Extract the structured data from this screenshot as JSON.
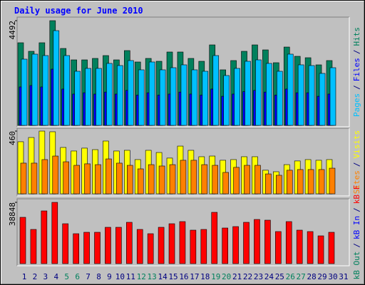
{
  "chart_data": [
    {
      "type": "bar",
      "title": "Daily usage for June 2010",
      "legend_separator": "/",
      "ylim": [
        0,
        4492
      ],
      "yticks": [
        4492
      ],
      "series": [
        {
          "name": "Hits",
          "color": "#00805c",
          "values": [
            3545,
            3178,
            3545,
            4492,
            3300,
            2811,
            2811,
            2873,
            2995,
            2811,
            3209,
            2720,
            2873,
            2750,
            3148,
            3148,
            2873,
            2750,
            3453,
            2384,
            2781,
            3178,
            3453,
            3239,
            2689,
            3361,
            2964,
            2903,
            2597,
            2781,
            null
          ]
        },
        {
          "name": "Files",
          "color": "#0000ff",
          "values": [
            1650,
            1711,
            1650,
            2414,
            1559,
            1345,
            1400,
            1345,
            1430,
            1345,
            1500,
            1300,
            1400,
            1300,
            1345,
            1430,
            1345,
            1300,
            1560,
            1250,
            1345,
            1450,
            1500,
            1430,
            1300,
            1560,
            1400,
            1400,
            1250,
            1345,
            null
          ]
        },
        {
          "name": "Pages",
          "color": "#00c0ff",
          "values": [
            2842,
            3056,
            2995,
            4064,
            2995,
            2322,
            2445,
            2445,
            2659,
            2567,
            2781,
            2384,
            2720,
            2384,
            2475,
            2598,
            2384,
            2322,
            2995,
            2139,
            2445,
            2750,
            2811,
            2659,
            2322,
            3056,
            2598,
            2567,
            2231,
            2475,
            null
          ]
        }
      ]
    },
    {
      "type": "bar",
      "legend_separator": "/",
      "ylim": [
        0,
        460
      ],
      "yticks": [
        460
      ],
      "series": [
        {
          "name": "Visits",
          "color": "#ffff00",
          "values": [
            382,
            413,
            460,
            455,
            340,
            314,
            335,
            324,
            387,
            314,
            319,
            251,
            319,
            303,
            262,
            350,
            319,
            272,
            277,
            246,
            251,
            272,
            272,
            173,
            162,
            214,
            241,
            251,
            246,
            251,
            null
          ]
        },
        {
          "name": "Sites",
          "color": "#ff8000",
          "values": [
            225,
            225,
            251,
            277,
            235,
            209,
            220,
            214,
            256,
            225,
            209,
            183,
            214,
            204,
            214,
            246,
            246,
            214,
            209,
            157,
            194,
            209,
            209,
            146,
            136,
            173,
            178,
            178,
            178,
            188,
            null
          ]
        }
      ]
    },
    {
      "type": "bar",
      "legend_separator": "/",
      "ylim": [
        0,
        38848
      ],
      "yticks": [
        38848
      ],
      "categories": [
        "1",
        "2",
        "3",
        "4",
        "5",
        "6",
        "7",
        "8",
        "9",
        "10",
        "11",
        "12",
        "13",
        "14",
        "15",
        "16",
        "17",
        "18",
        "19",
        "20",
        "21",
        "22",
        "23",
        "24",
        "25",
        "26",
        "27",
        "28",
        "29",
        "30",
        "31"
      ],
      "category_colors": [
        "#000080",
        "#000080",
        "#000080",
        "#000080",
        "#00805c",
        "#00805c",
        "#000080",
        "#000080",
        "#000080",
        "#000080",
        "#000080",
        "#00805c",
        "#00805c",
        "#000080",
        "#000080",
        "#000080",
        "#000080",
        "#000080",
        "#00805c",
        "#00805c",
        "#000080",
        "#000080",
        "#000080",
        "#000080",
        "#000080",
        "#00805c",
        "#00805c",
        "#000080",
        "#000080",
        "#000080",
        "#000080"
      ],
      "series": [
        {
          "name": "kB F",
          "color": "#ff0000",
          "values": [
            29361,
            21682,
            33426,
            38848,
            25295,
            18971,
            19875,
            19875,
            23037,
            23037,
            26199,
            21682,
            18971,
            23037,
            25295,
            26650,
            21230,
            21682,
            32522,
            22585,
            23488,
            26199,
            28005,
            27554,
            20327,
            26650,
            21230,
            20327,
            17616,
            19875,
            null
          ]
        },
        {
          "name": "kB In",
          "color": "#0000ff",
          "values": [
            null,
            null,
            null,
            null,
            null,
            null,
            null,
            null,
            null,
            null,
            null,
            null,
            null,
            null,
            null,
            null,
            null,
            null,
            null,
            null,
            null,
            null,
            null,
            null,
            null,
            null,
            null,
            null,
            null,
            null,
            null
          ]
        },
        {
          "name": "kB Out",
          "color": "#00805c",
          "values": [
            null,
            null,
            null,
            null,
            null,
            null,
            null,
            null,
            null,
            null,
            null,
            null,
            null,
            null,
            null,
            null,
            null,
            null,
            null,
            null,
            null,
            null,
            null,
            null,
            null,
            null,
            null,
            null,
            null,
            null,
            null
          ]
        }
      ]
    }
  ]
}
